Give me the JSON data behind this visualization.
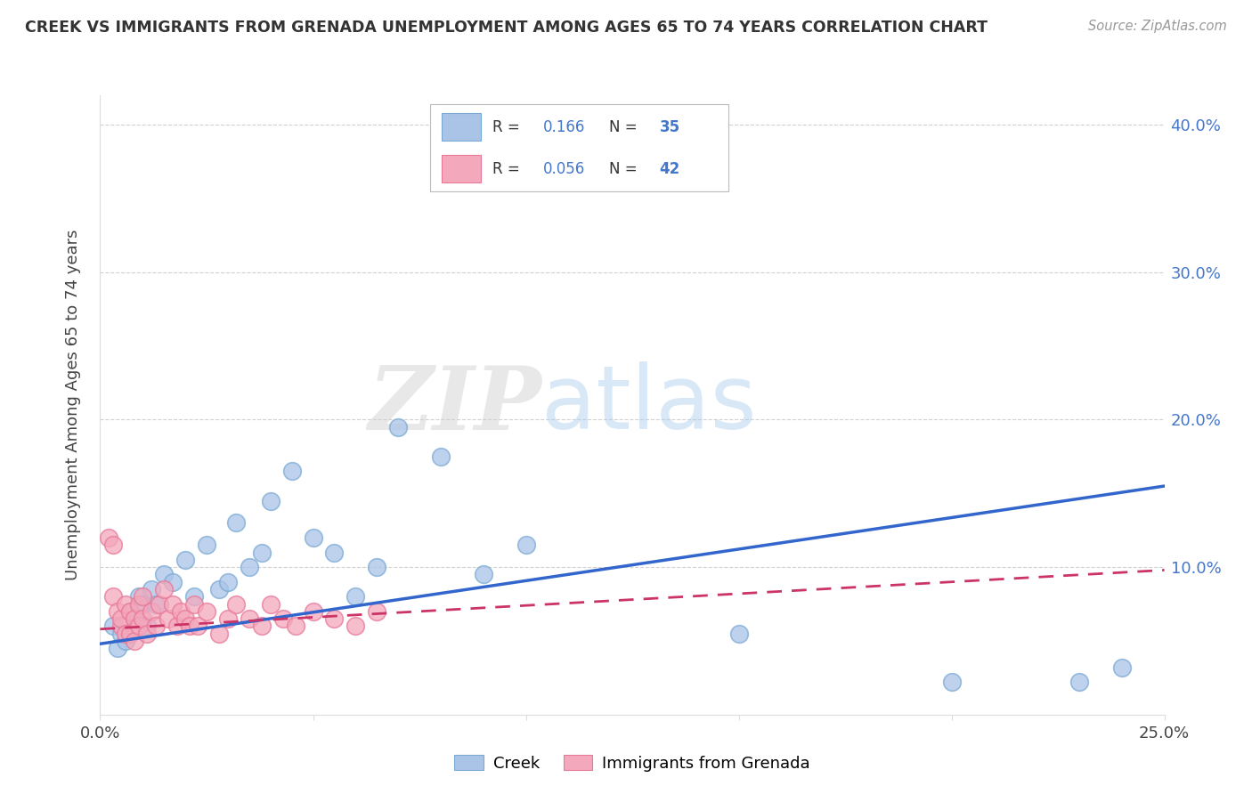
{
  "title": "CREEK VS IMMIGRANTS FROM GRENADA UNEMPLOYMENT AMONG AGES 65 TO 74 YEARS CORRELATION CHART",
  "source": "Source: ZipAtlas.com",
  "ylabel": "Unemployment Among Ages 65 to 74 years",
  "xlim": [
    0.0,
    0.25
  ],
  "ylim": [
    0.0,
    0.42
  ],
  "creek_R": "0.166",
  "creek_N": "35",
  "grenada_R": "0.056",
  "grenada_N": "42",
  "legend_labels": [
    "Creek",
    "Immigrants from Grenada"
  ],
  "creek_color": "#aac4e8",
  "creek_edge_color": "#7aaad4",
  "grenada_color": "#f4a8bc",
  "grenada_edge_color": "#e87898",
  "creek_line_color": "#3366cc",
  "grenada_line_color": "#cc3366",
  "watermark_zip": "ZIP",
  "watermark_atlas": "atlas",
  "creek_scatter_x": [
    0.003,
    0.004,
    0.005,
    0.006,
    0.007,
    0.008,
    0.009,
    0.01,
    0.011,
    0.012,
    0.013,
    0.015,
    0.017,
    0.02,
    0.022,
    0.025,
    0.028,
    0.03,
    0.032,
    0.035,
    0.038,
    0.04,
    0.045,
    0.05,
    0.055,
    0.06,
    0.065,
    0.07,
    0.08,
    0.09,
    0.1,
    0.15,
    0.2,
    0.23,
    0.24
  ],
  "creek_scatter_y": [
    0.06,
    0.045,
    0.055,
    0.05,
    0.07,
    0.065,
    0.08,
    0.075,
    0.06,
    0.085,
    0.075,
    0.095,
    0.09,
    0.105,
    0.08,
    0.115,
    0.085,
    0.09,
    0.13,
    0.1,
    0.11,
    0.145,
    0.165,
    0.12,
    0.11,
    0.08,
    0.1,
    0.195,
    0.175,
    0.095,
    0.115,
    0.055,
    0.022,
    0.022,
    0.032
  ],
  "grenada_scatter_x": [
    0.002,
    0.003,
    0.003,
    0.004,
    0.005,
    0.005,
    0.006,
    0.006,
    0.007,
    0.007,
    0.008,
    0.008,
    0.009,
    0.009,
    0.01,
    0.01,
    0.011,
    0.012,
    0.013,
    0.014,
    0.015,
    0.016,
    0.017,
    0.018,
    0.019,
    0.02,
    0.021,
    0.022,
    0.023,
    0.025,
    0.028,
    0.03,
    0.032,
    0.035,
    0.038,
    0.04,
    0.043,
    0.046,
    0.05,
    0.055,
    0.06,
    0.065
  ],
  "grenada_scatter_y": [
    0.12,
    0.115,
    0.08,
    0.07,
    0.06,
    0.065,
    0.055,
    0.075,
    0.055,
    0.07,
    0.05,
    0.065,
    0.06,
    0.075,
    0.065,
    0.08,
    0.055,
    0.07,
    0.06,
    0.075,
    0.085,
    0.065,
    0.075,
    0.06,
    0.07,
    0.065,
    0.06,
    0.075,
    0.06,
    0.07,
    0.055,
    0.065,
    0.075,
    0.065,
    0.06,
    0.075,
    0.065,
    0.06,
    0.07,
    0.065,
    0.06,
    0.07
  ],
  "creek_trendline_x": [
    0.0,
    0.25
  ],
  "creek_trendline_y": [
    0.048,
    0.155
  ],
  "grenada_trendline_x": [
    0.0,
    0.25
  ],
  "grenada_trendline_y": [
    0.058,
    0.098
  ]
}
